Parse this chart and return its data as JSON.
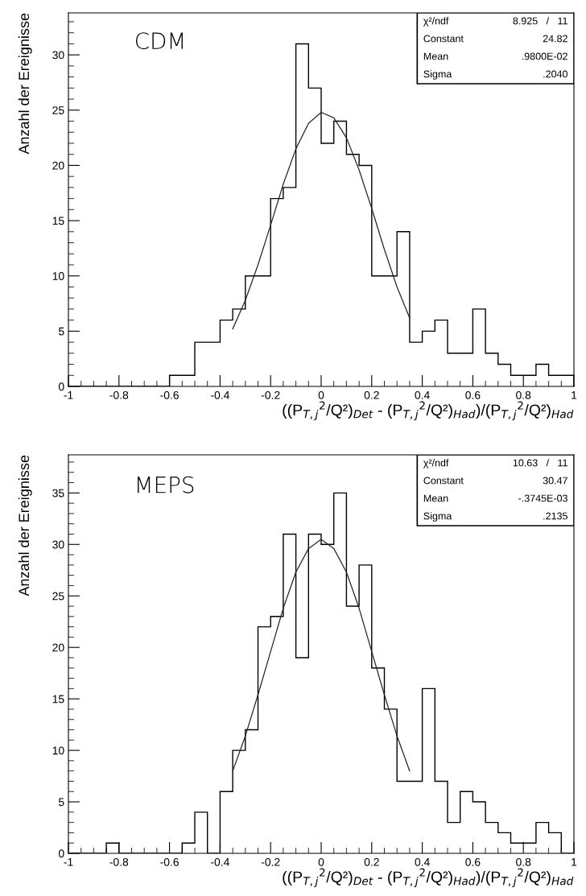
{
  "chart_data": [
    {
      "type": "histogram",
      "ylabel": "Anzahl der Ereignisse",
      "xlabel": "((P$_{T,j}$$^{2}$/Q²)$_{Det}$ - (P$_{T,j}$$^{2}$/Q²)$_{Had}$)/(P$_{T,j}$$^{2}$/Q²)$_{Had}$",
      "annotations": [
        "CDM",
        "χ²/ndf",
        "8.925   /   11",
        "Constant",
        "24.82",
        "Mean",
        ".9800E-02",
        "Sigma",
        ".2040"
      ],
      "bins": [
        -1,
        -0.95,
        -0.9,
        -0.85,
        -0.8,
        -0.75,
        -0.7,
        -0.65,
        -0.6,
        -0.55,
        -0.5,
        -0.45,
        -0.4,
        -0.35,
        -0.3,
        -0.25,
        -0.2,
        -0.15,
        -0.1,
        -0.05,
        0,
        0.05,
        0.1,
        0.15,
        0.2,
        0.25,
        0.3,
        0.35,
        0.4,
        0.45,
        0.5,
        0.55,
        0.6,
        0.65,
        0.7,
        0.75,
        0.8,
        0.85,
        0.9,
        0.95,
        1
      ],
      "series": [
        {
          "type": "histogram",
          "color": "#000000",
          "values": [
            0,
            0,
            0,
            0,
            0,
            0,
            0,
            0,
            1,
            1,
            4,
            4,
            6,
            7,
            10,
            10,
            17,
            18,
            31,
            27,
            22,
            24,
            21,
            20,
            10,
            10,
            14,
            4,
            5,
            6,
            3,
            3,
            7,
            3,
            2,
            1,
            1,
            2,
            1,
            1
          ]
        },
        {
          "type": "line",
          "color": "#262626",
          "x": [
            -0.35,
            -0.3,
            -0.25,
            -0.2,
            -0.15,
            -0.1,
            -0.05,
            0,
            0.05,
            0.1,
            0.15,
            0.2,
            0.25,
            0.3,
            0.35
          ],
          "values": [
            5.2,
            7.8,
            11.0,
            14.6,
            18.3,
            21.5,
            23.8,
            24.8,
            24.3,
            22.5,
            19.6,
            16.1,
            12.4,
            9.0,
            6.2
          ]
        }
      ],
      "xlim": [
        -1,
        1
      ],
      "xticks": [
        -1,
        -0.8,
        -0.6,
        -0.4,
        -0.2,
        0,
        0.2,
        0.4,
        0.6,
        0.8,
        1
      ],
      "ylim": [
        0,
        33.8
      ],
      "yticks": [
        0,
        5,
        10,
        15,
        20,
        25,
        30
      ]
    },
    {
      "type": "histogram",
      "ylabel": "Anzahl der Ereignisse",
      "xlabel": "((P$_{T,j}$$^{2}$/Q²)$_{Det}$ - (P$_{T,j}$$^{2}$/Q²)$_{Had}$)/(P$_{T,j}$$^{2}$/Q²)$_{Had}$",
      "annotations": [
        "MEPS",
        "χ²/ndf",
        "10.63   /   11",
        "Constant",
        "30.47",
        "Mean",
        "-.3745E-03",
        "Sigma",
        ".2135"
      ],
      "bins": [
        -1,
        -0.95,
        -0.9,
        -0.85,
        -0.8,
        -0.75,
        -0.7,
        -0.65,
        -0.6,
        -0.55,
        -0.5,
        -0.45,
        -0.4,
        -0.35,
        -0.3,
        -0.25,
        -0.2,
        -0.15,
        -0.1,
        -0.05,
        0,
        0.05,
        0.1,
        0.15,
        0.2,
        0.25,
        0.3,
        0.35,
        0.4,
        0.45,
        0.5,
        0.55,
        0.6,
        0.65,
        0.7,
        0.75,
        0.8,
        0.85,
        0.9,
        0.95,
        1
      ],
      "series": [
        {
          "type": "histogram",
          "color": "#000000",
          "values": [
            0,
            0,
            0,
            1,
            0,
            0,
            0,
            0,
            0,
            1,
            4,
            0,
            6,
            10,
            12,
            22,
            23,
            31,
            19,
            31,
            30,
            35,
            24,
            28,
            18,
            14,
            7,
            7,
            16,
            7,
            3,
            6,
            5,
            3,
            2,
            1,
            1,
            3,
            2,
            0
          ]
        },
        {
          "type": "line",
          "color": "#262626",
          "x": [
            -0.35,
            -0.3,
            -0.25,
            -0.2,
            -0.15,
            -0.1,
            -0.05,
            0,
            0.05,
            0.1,
            0.15,
            0.2,
            0.25,
            0.3,
            0.35
          ],
          "values": [
            8.0,
            11.4,
            15.4,
            19.6,
            23.8,
            27.3,
            29.6,
            30.5,
            29.6,
            27.3,
            23.8,
            19.6,
            15.4,
            11.4,
            8.0
          ]
        }
      ],
      "xlim": [
        -1,
        1
      ],
      "xticks": [
        -1,
        -0.8,
        -0.6,
        -0.4,
        -0.2,
        0,
        0.2,
        0.4,
        0.6,
        0.8,
        1
      ],
      "ylim": [
        0,
        38.7
      ],
      "yticks": [
        0,
        5,
        10,
        15,
        20,
        25,
        30,
        35
      ]
    }
  ]
}
